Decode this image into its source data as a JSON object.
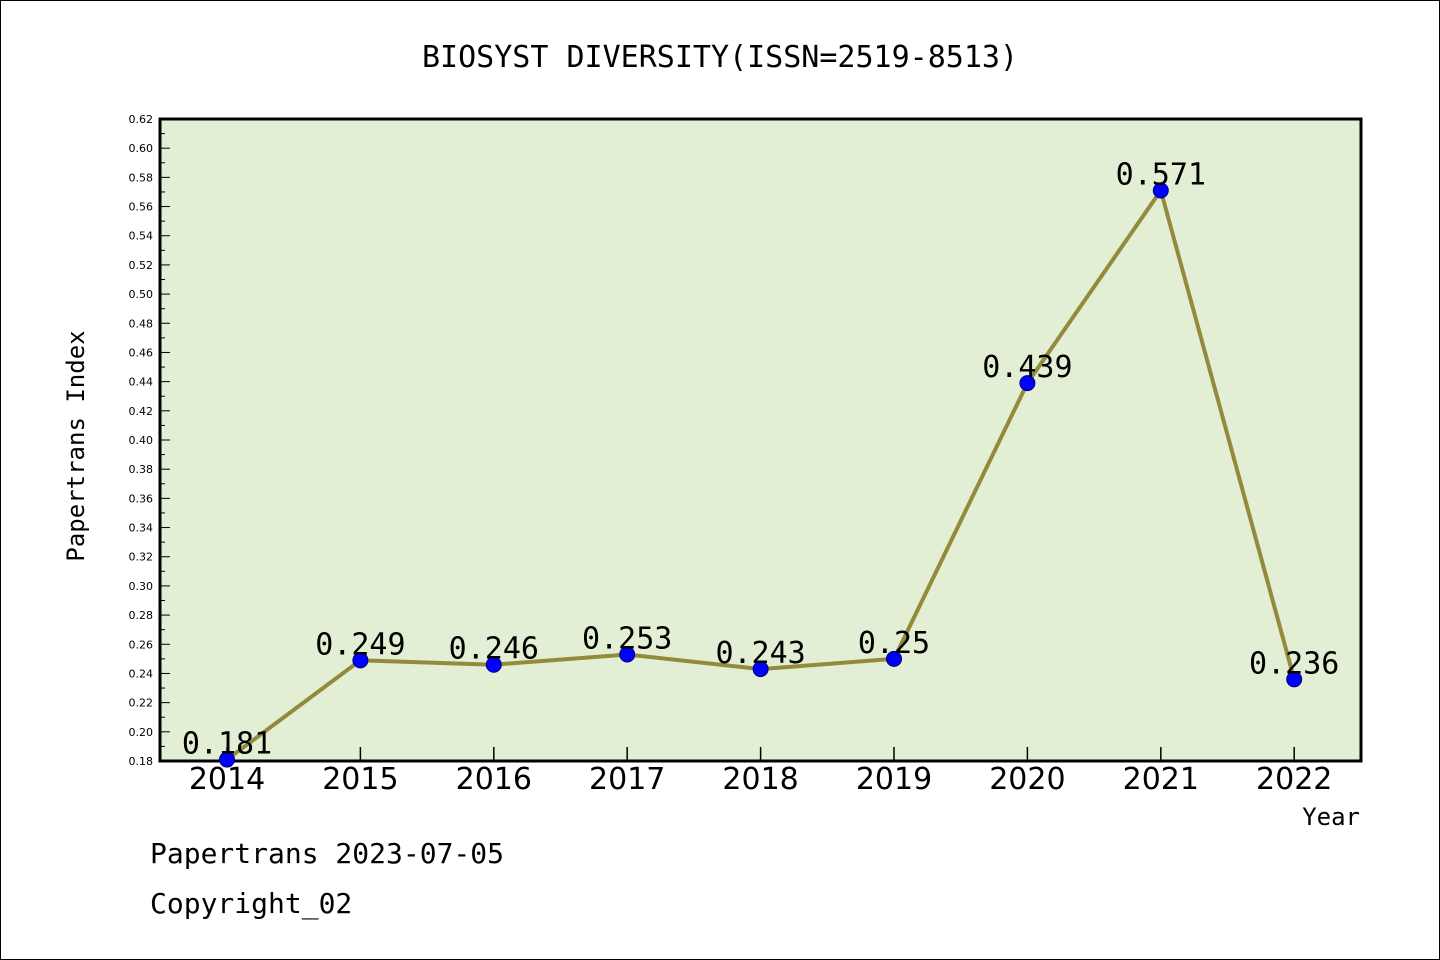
{
  "chart_data": {
    "type": "line",
    "title": "BIOSYST DIVERSITY(ISSN=2519-8513)",
    "xlabel": "Year",
    "ylabel": "Papertrans Index",
    "categories": [
      "2014",
      "2015",
      "2016",
      "2017",
      "2018",
      "2019",
      "2020",
      "2021",
      "2022"
    ],
    "series": [
      {
        "values": [
          0.181,
          0.249,
          0.246,
          0.253,
          0.243,
          0.25,
          0.439,
          0.571,
          0.236
        ],
        "value_labels": [
          "0.181",
          "0.249",
          "0.246",
          "0.253",
          "0.243",
          "0.25",
          "0.439",
          "0.571",
          "0.236"
        ]
      }
    ],
    "ylim": [
      0.18,
      0.62
    ],
    "yticks": [
      "0.18",
      "0.20",
      "0.22",
      "0.24",
      "0.26",
      "0.28",
      "0.30",
      "0.32",
      "0.34",
      "0.36",
      "0.38",
      "0.40",
      "0.42",
      "0.44",
      "0.46",
      "0.48",
      "0.50",
      "0.52",
      "0.54",
      "0.56",
      "0.58",
      "0.60",
      "0.62"
    ],
    "colors": {
      "plot_bg": "#e2efd4",
      "line": "#948a3c",
      "marker": "#0000ff"
    },
    "grid": false,
    "legend": "none"
  },
  "footer": {
    "line1": "Papertrans 2023-07-05",
    "line2": "Copyright_02"
  }
}
